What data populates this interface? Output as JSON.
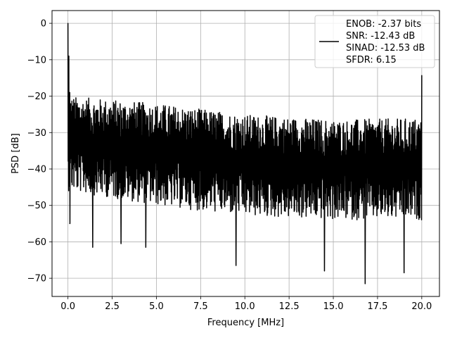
{
  "chart_data": {
    "type": "line",
    "xlabel": "Frequency [MHz]",
    "ylabel": "PSD [dB]",
    "xlim": [
      -0.9,
      21.0
    ],
    "ylim": [
      -75,
      3.5
    ],
    "xticks": [
      0.0,
      2.5,
      5.0,
      7.5,
      10.0,
      12.5,
      15.0,
      17.5,
      20.0
    ],
    "xtick_labels": [
      "0.0",
      "2.5",
      "5.0",
      "7.5",
      "10.0",
      "12.5",
      "15.0",
      "17.5",
      "20.0"
    ],
    "yticks": [
      0,
      -10,
      -20,
      -30,
      -40,
      -50,
      -60,
      -70
    ],
    "ytick_labels": [
      "0",
      "−10",
      "−20",
      "−30",
      "−40",
      "−50",
      "−60",
      "−70"
    ],
    "grid": true,
    "legend_position": "top-right",
    "series": [
      {
        "name": "ENOB: -2.37 bits\nSNR: -12.43 dB\nSINAD: -12.53 dB\nSFDR: 6.15",
        "color": "#000000",
        "x_range": [
          0.0,
          20.0
        ],
        "peaks": [
          {
            "x": 0.0,
            "y": 0.0
          },
          {
            "x": 0.05,
            "y": -9.0
          },
          {
            "x": 0.1,
            "y": -19.0
          },
          {
            "x": 20.0,
            "y": -14.3
          }
        ],
        "noise_floor_top": {
          "x": [
            0.0,
            5.0,
            10.0,
            15.0,
            20.0
          ],
          "y": [
            -20.0,
            -22.0,
            -25.0,
            -26.5,
            -26.0
          ]
        },
        "noise_floor_bottom": {
          "x": [
            0.0,
            5.0,
            10.0,
            15.0,
            20.0
          ],
          "y": [
            -46.0,
            -50.0,
            -53.0,
            -54.0,
            -54.0
          ]
        },
        "deep_dips": [
          {
            "x": 0.1,
            "y": -55.0
          },
          {
            "x": 1.4,
            "y": -61.5
          },
          {
            "x": 3.0,
            "y": -60.5
          },
          {
            "x": 4.4,
            "y": -61.5
          },
          {
            "x": 9.5,
            "y": -66.5
          },
          {
            "x": 14.5,
            "y": -68.0
          },
          {
            "x": 16.8,
            "y": -71.5
          },
          {
            "x": 19.0,
            "y": -68.5
          }
        ]
      }
    ],
    "legend_lines": [
      "ENOB: -2.37 bits",
      "SNR: -12.43 dB",
      "SINAD: -12.53 dB",
      "SFDR: 6.15"
    ]
  }
}
